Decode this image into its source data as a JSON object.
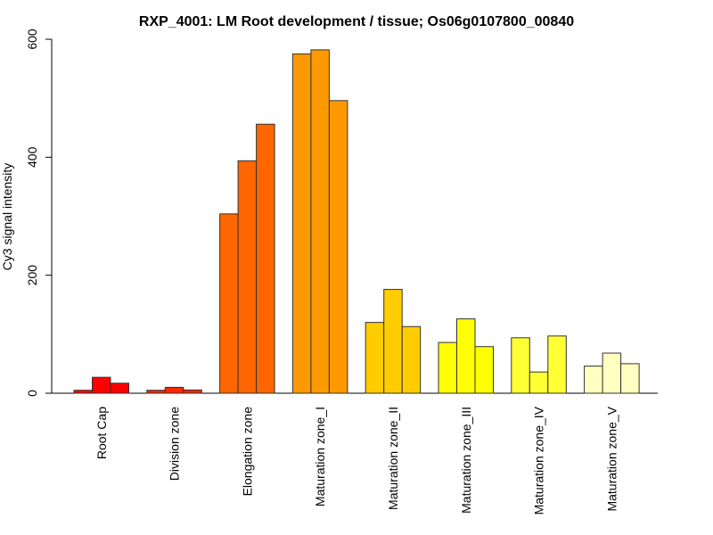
{
  "chart_data": {
    "type": "bar",
    "title": "RXP_4001: LM Root development / tissue; Os06g0107800_00840",
    "xlabel": "",
    "ylabel": "Cy3 signal intensity",
    "ylim": [
      0,
      600
    ],
    "yticks": [
      0,
      200,
      400,
      600
    ],
    "grid": false,
    "legend": "none",
    "categories": [
      "Root Cap",
      "Division zone",
      "Elongation zone",
      "Maturation zone_I",
      "Maturation zone_II",
      "Maturation zone_III",
      "Maturation zone_IV",
      "Maturation zone_V"
    ],
    "colors": [
      "#FF0000",
      "#FF2400",
      "#FF6600",
      "#FF9900",
      "#FFCC00",
      "#FFFF00",
      "#FFFF33",
      "#FFFFBF"
    ],
    "replicates_per_category": 3,
    "values": [
      [
        5,
        27,
        17
      ],
      [
        5,
        10,
        5.5
      ],
      [
        304,
        394,
        456
      ],
      [
        575,
        582,
        496
      ],
      [
        120,
        176,
        113
      ],
      [
        86,
        126,
        79
      ],
      [
        94,
        36,
        97
      ],
      [
        46,
        68,
        50
      ]
    ]
  }
}
